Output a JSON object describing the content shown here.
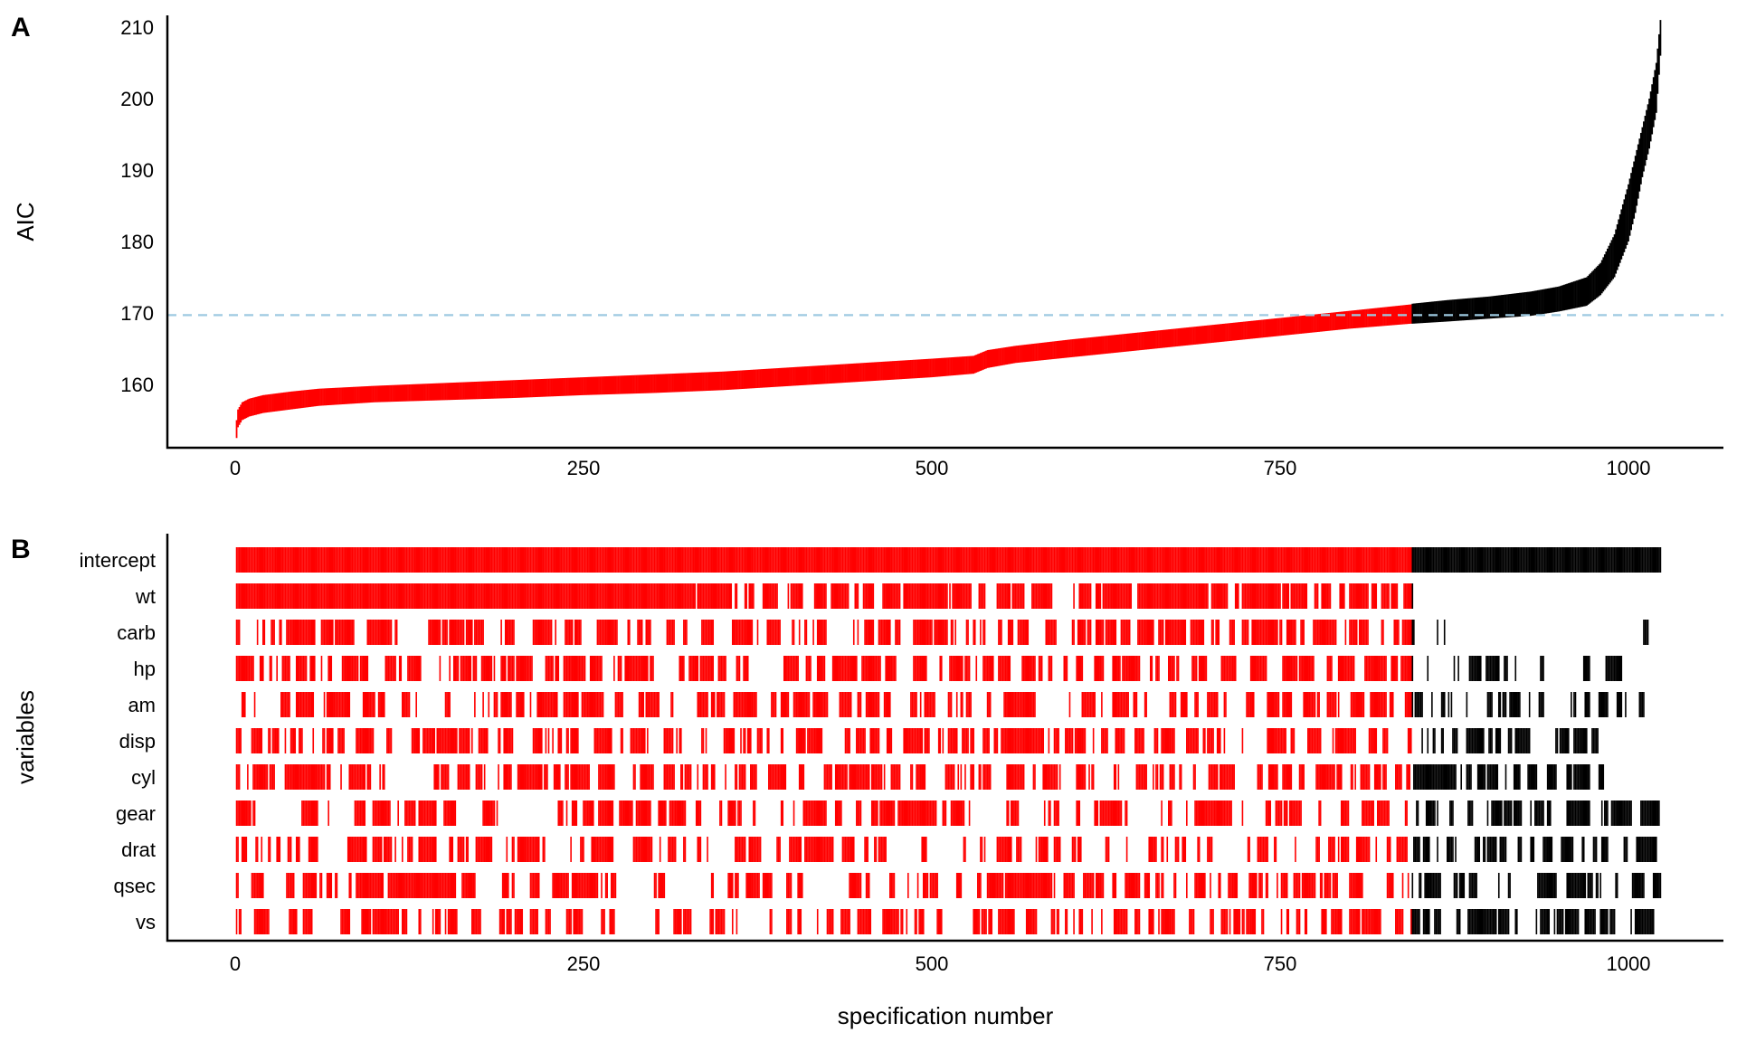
{
  "chart_data": [
    {
      "panel": "A",
      "type": "line",
      "ylabel": "AIC",
      "xlabel": "",
      "xlim": [
        -50,
        1075
      ],
      "ylim": [
        152,
        211
      ],
      "xticks": [
        0,
        250,
        500,
        750,
        1000
      ],
      "yticks": [
        160,
        170,
        180,
        190,
        200,
        210
      ],
      "grid": false,
      "reference_line": {
        "y": 169.7,
        "color": "#9ecae1",
        "style": "dashed"
      },
      "colors": {
        "within_threshold": "#ff0000",
        "above_threshold": "#000000"
      },
      "n_specifications": 1023,
      "threshold_index": 844,
      "series": [
        {
          "values_x": [
            1,
            2,
            5,
            10,
            20,
            40,
            60,
            100,
            150,
            200,
            250,
            300,
            350,
            400,
            450,
            500,
            530,
            540,
            560,
            600,
            650,
            700,
            750,
            800,
            844
          ],
          "values_lower": [
            152.5,
            154.0,
            155.0,
            155.5,
            156.0,
            156.5,
            157.0,
            157.5,
            157.8,
            158.1,
            158.5,
            158.8,
            159.2,
            159.8,
            160.4,
            161.0,
            161.5,
            162.3,
            163.0,
            163.8,
            164.8,
            165.8,
            166.8,
            167.8,
            168.5
          ],
          "values_upper": [
            155.0,
            156.5,
            157.5,
            158.0,
            158.5,
            159.0,
            159.4,
            159.8,
            160.2,
            160.6,
            161.0,
            161.4,
            161.8,
            162.4,
            163.0,
            163.6,
            164.0,
            164.8,
            165.4,
            166.3,
            167.3,
            168.3,
            169.3,
            170.3,
            171.2
          ]
        },
        {
          "values_x": [
            845,
            870,
            900,
            930,
            950,
            970,
            980,
            990,
            1000,
            1005,
            1010,
            1015,
            1020,
            1023
          ],
          "values_lower": [
            168.5,
            168.8,
            169.2,
            169.6,
            170.2,
            171.0,
            172.5,
            175.0,
            180.0,
            184.0,
            189.0,
            193.0,
            198.0,
            206.0
          ],
          "values_upper": [
            171.3,
            171.8,
            172.3,
            173.0,
            173.7,
            175.0,
            177.0,
            181.0,
            188.0,
            192.0,
            196.0,
            200.0,
            205.0,
            211.0
          ]
        }
      ]
    },
    {
      "panel": "B",
      "type": "heatmap",
      "xlabel": "specification number",
      "ylabel": "variables",
      "xlim": [
        -50,
        1075
      ],
      "xticks": [
        0,
        250,
        500,
        750,
        1000
      ],
      "grid": false,
      "n_specifications": 1023,
      "threshold_index": 844,
      "colors": {
        "within_threshold": "#ff0000",
        "above_threshold": "#000000"
      },
      "variables": [
        {
          "name": "intercept",
          "density_red": 1.0,
          "density_black": 1.0,
          "end": 1023,
          "seed": 1
        },
        {
          "name": "wt",
          "density_red": 0.75,
          "density_black": 0.01,
          "end": 1023,
          "seed": 2,
          "red_full_until": 330
        },
        {
          "name": "carb",
          "density_red": 0.55,
          "density_black": 0.08,
          "end": 1021,
          "seed": 3
        },
        {
          "name": "hp",
          "density_red": 0.6,
          "density_black": 0.25,
          "end": 1000,
          "seed": 4
        },
        {
          "name": "am",
          "density_red": 0.55,
          "density_black": 0.3,
          "end": 1020,
          "seed": 5
        },
        {
          "name": "disp",
          "density_red": 0.5,
          "density_black": 0.55,
          "end": 985,
          "seed": 6
        },
        {
          "name": "cyl",
          "density_red": 0.5,
          "density_black": 0.55,
          "end": 982,
          "seed": 7
        },
        {
          "name": "gear",
          "density_red": 0.45,
          "density_black": 0.5,
          "end": 1023,
          "seed": 8
        },
        {
          "name": "drat",
          "density_red": 0.45,
          "density_black": 0.5,
          "end": 1020,
          "seed": 9
        },
        {
          "name": "qsec",
          "density_red": 0.5,
          "density_black": 0.5,
          "end": 1023,
          "seed": 10
        },
        {
          "name": "vs",
          "density_red": 0.4,
          "density_black": 0.6,
          "end": 1018,
          "seed": 11
        }
      ]
    }
  ]
}
